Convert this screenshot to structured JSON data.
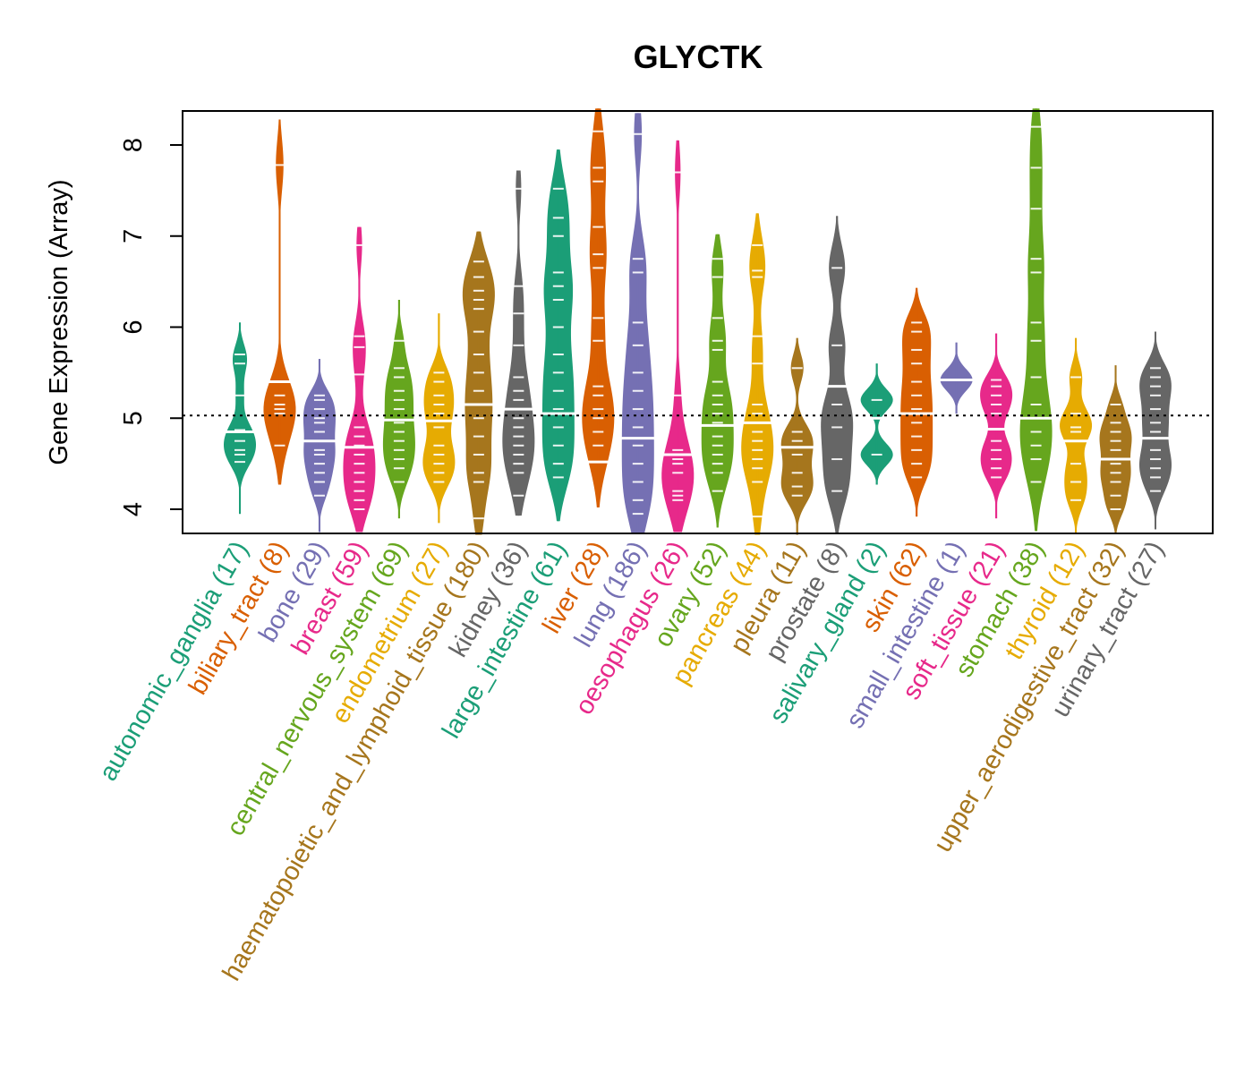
{
  "chart_data": {
    "type": "beanplot",
    "title": "GLYCTK",
    "xlabel": "",
    "ylabel": "Gene Expression (Array)",
    "ylim": [
      3.75,
      8.4
    ],
    "yticks": [
      4,
      5,
      6,
      7,
      8
    ],
    "grid": false,
    "reference_line": 5.03,
    "categories": [
      {
        "name": "autonomic_ganglia",
        "n": 17,
        "label": "autonomic_ganglia (17)",
        "color": "#1B9E77",
        "min": 3.95,
        "max": 6.05,
        "median": 4.85,
        "width": 0.45,
        "points": [
          4.52,
          4.6,
          4.65,
          4.75,
          4.85,
          4.87,
          5.25,
          5.6,
          5.7
        ]
      },
      {
        "name": "biliary_tract",
        "n": 8,
        "label": "biliary_tract (8)",
        "color": "#D95F02",
        "min": 4.27,
        "max": 8.28,
        "median": 5.4,
        "width": 0.45,
        "points": [
          4.7,
          5.05,
          5.1,
          5.15,
          5.25,
          7.78
        ]
      },
      {
        "name": "bone",
        "n": 29,
        "label": "bone (29)",
        "color": "#7570B3",
        "min": 3.75,
        "max": 5.65,
        "median": 4.75,
        "width": 0.45,
        "points": [
          4.15,
          4.3,
          4.4,
          4.5,
          4.6,
          4.65,
          4.75,
          4.85,
          4.95,
          5.0,
          5.1,
          5.2,
          5.25
        ]
      },
      {
        "name": "breast",
        "n": 59,
        "label": "breast (59)",
        "color": "#E7298A",
        "min": 3.75,
        "max": 7.1,
        "median": 4.68,
        "width": 0.45,
        "points": [
          4.0,
          4.1,
          4.2,
          4.3,
          4.4,
          4.5,
          4.6,
          4.7,
          4.8,
          4.9,
          5.48,
          5.78,
          5.9,
          6.9
        ]
      },
      {
        "name": "central_nervous_system",
        "n": 69,
        "label": "central_nervous_system (69)",
        "color": "#66A61E",
        "min": 3.9,
        "max": 6.3,
        "median": 4.98,
        "width": 0.45,
        "points": [
          4.3,
          4.45,
          4.55,
          4.65,
          4.75,
          4.85,
          4.95,
          5.1,
          5.2,
          5.3,
          5.45,
          5.55,
          5.85
        ]
      },
      {
        "name": "endometrium",
        "n": 27,
        "label": "endometrium (27)",
        "color": "#E6AB02",
        "min": 3.85,
        "max": 6.15,
        "median": 4.97,
        "width": 0.45,
        "points": [
          4.3,
          4.4,
          4.5,
          4.6,
          4.7,
          4.9,
          5.05,
          5.15,
          5.25,
          5.4,
          5.5
        ]
      },
      {
        "name": "haematopoietic_and_lymphoid_tissue",
        "n": 180,
        "label": "haematopoietic_and_lymphoid_tissue (180)",
        "color": "#A6761D",
        "min": 3.72,
        "max": 7.05,
        "median": 5.15,
        "width": 0.45,
        "points": [
          3.9,
          4.3,
          4.4,
          4.6,
          4.8,
          5.0,
          5.15,
          5.3,
          5.5,
          5.7,
          5.95,
          6.2,
          6.3,
          6.4,
          6.55,
          6.72
        ]
      },
      {
        "name": "kidney",
        "n": 36,
        "label": "kidney (36)",
        "color": "#666666",
        "min": 3.93,
        "max": 7.72,
        "median": 5.1,
        "width": 0.45,
        "points": [
          4.15,
          4.4,
          4.5,
          4.6,
          4.7,
          4.8,
          4.9,
          5.0,
          5.2,
          5.3,
          5.45,
          5.8,
          6.15,
          6.45,
          7.52
        ]
      },
      {
        "name": "large_intestine",
        "n": 61,
        "label": "large_intestine (61)",
        "color": "#1B9E77",
        "min": 3.87,
        "max": 7.95,
        "median": 5.05,
        "width": 0.45,
        "points": [
          4.35,
          4.5,
          4.7,
          4.9,
          5.1,
          5.3,
          5.5,
          5.7,
          6.0,
          6.3,
          6.45,
          6.6,
          7.0,
          7.2,
          7.52
        ]
      },
      {
        "name": "liver",
        "n": 28,
        "label": "liver (28)",
        "color": "#D95F02",
        "min": 4.02,
        "max": 8.4,
        "median": 4.52,
        "width": 0.45,
        "points": [
          4.52,
          4.7,
          4.85,
          5.0,
          5.1,
          5.25,
          5.35,
          5.85,
          6.1,
          6.65,
          6.8,
          7.1,
          7.6,
          7.75,
          8.15
        ]
      },
      {
        "name": "lung",
        "n": 186,
        "label": "lung (186)",
        "color": "#7570B3",
        "min": 3.73,
        "max": 8.35,
        "median": 4.78,
        "width": 0.45,
        "points": [
          3.95,
          4.1,
          4.3,
          4.5,
          4.7,
          4.9,
          5.1,
          5.3,
          5.5,
          5.8,
          6.05,
          6.6,
          6.75,
          8.12
        ]
      },
      {
        "name": "oesophagus",
        "n": 26,
        "label": "oesophagus (26)",
        "color": "#E7298A",
        "min": 3.75,
        "max": 8.05,
        "median": 4.6,
        "width": 0.45,
        "points": [
          4.1,
          4.15,
          4.2,
          4.4,
          4.5,
          4.55,
          4.65,
          5.25,
          7.7
        ]
      },
      {
        "name": "ovary",
        "n": 52,
        "label": "ovary (52)",
        "color": "#66A61E",
        "min": 3.8,
        "max": 7.02,
        "median": 4.92,
        "width": 0.45,
        "points": [
          4.2,
          4.4,
          4.5,
          4.6,
          4.7,
          4.8,
          4.95,
          5.05,
          5.15,
          5.25,
          5.4,
          5.75,
          5.85,
          6.1,
          6.55,
          6.75
        ]
      },
      {
        "name": "pancreas",
        "n": 44,
        "label": "pancreas (44)",
        "color": "#E6AB02",
        "min": 3.72,
        "max": 7.25,
        "median": 4.95,
        "width": 0.45,
        "points": [
          3.92,
          4.3,
          4.45,
          4.55,
          4.65,
          4.75,
          4.85,
          5.05,
          5.15,
          5.6,
          5.9,
          6.55,
          6.62,
          6.9
        ]
      },
      {
        "name": "pleura",
        "n": 11,
        "label": "pleura (11)",
        "color": "#A6761D",
        "min": 3.72,
        "max": 5.88,
        "median": 4.68,
        "width": 0.45,
        "points": [
          4.15,
          4.25,
          4.4,
          4.6,
          4.75,
          4.85,
          5.55
        ]
      },
      {
        "name": "prostate",
        "n": 8,
        "label": "prostate (8)",
        "color": "#666666",
        "min": 3.73,
        "max": 7.22,
        "median": 5.35,
        "width": 0.45,
        "points": [
          4.2,
          4.55,
          4.9,
          5.15,
          5.8,
          6.65
        ]
      },
      {
        "name": "salivary_gland",
        "n": 2,
        "label": "salivary_gland (2)",
        "color": "#1B9E77",
        "min": 4.27,
        "max": 5.6,
        "median": 5.0,
        "width": 0.45,
        "points": [
          4.6,
          5.2
        ]
      },
      {
        "name": "skin",
        "n": 62,
        "label": "skin (62)",
        "color": "#D95F02",
        "min": 3.92,
        "max": 6.43,
        "median": 5.05,
        "width": 0.45,
        "points": [
          4.35,
          4.5,
          4.65,
          4.8,
          4.95,
          5.1,
          5.25,
          5.4,
          5.6,
          5.75,
          5.95,
          6.05
        ]
      },
      {
        "name": "small_intestine",
        "n": 1,
        "label": "small_intestine (1)",
        "color": "#7570B3",
        "min": 5.05,
        "max": 5.83,
        "median": 5.42,
        "width": 0.45,
        "points": [
          5.42
        ]
      },
      {
        "name": "soft_tissue",
        "n": 21,
        "label": "soft_tissue (21)",
        "color": "#E7298A",
        "min": 3.9,
        "max": 5.93,
        "median": 4.88,
        "width": 0.45,
        "points": [
          4.35,
          4.45,
          4.55,
          4.65,
          4.75,
          5.05,
          5.15,
          5.25,
          5.35,
          5.42
        ]
      },
      {
        "name": "stomach",
        "n": 38,
        "label": "stomach (38)",
        "color": "#66A61E",
        "min": 3.76,
        "max": 8.4,
        "median": 5.0,
        "width": 0.45,
        "points": [
          4.3,
          4.55,
          4.7,
          4.85,
          5.0,
          5.15,
          5.45,
          5.85,
          6.05,
          6.6,
          6.75,
          7.3,
          7.75,
          8.2
        ]
      },
      {
        "name": "thyroid",
        "n": 12,
        "label": "thyroid (12)",
        "color": "#E6AB02",
        "min": 3.73,
        "max": 5.88,
        "median": 4.75,
        "width": 0.45,
        "points": [
          4.1,
          4.3,
          4.5,
          4.85,
          4.9,
          5.05,
          5.45
        ]
      },
      {
        "name": "upper_aerodigestive_tract",
        "n": 32,
        "label": "upper_aerodigestive_tract (32)",
        "color": "#A6761D",
        "min": 3.73,
        "max": 5.58,
        "median": 4.55,
        "width": 0.45,
        "points": [
          4.0,
          4.15,
          4.3,
          4.4,
          4.5,
          4.65,
          4.75,
          4.85,
          4.95,
          5.15
        ]
      },
      {
        "name": "urinary_tract",
        "n": 27,
        "label": "urinary_tract (27)",
        "color": "#666666",
        "min": 3.78,
        "max": 5.95,
        "median": 4.78,
        "width": 0.45,
        "points": [
          4.2,
          4.35,
          4.45,
          4.55,
          4.65,
          4.85,
          4.95,
          5.1,
          5.25,
          5.35,
          5.45,
          5.55
        ]
      }
    ]
  }
}
